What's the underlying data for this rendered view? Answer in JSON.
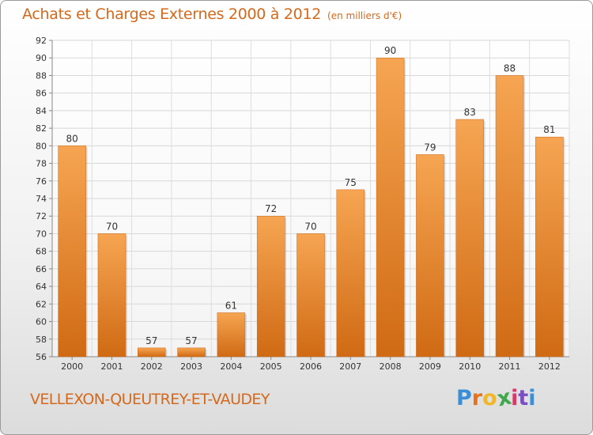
{
  "header": {
    "title": "Achats et Charges Externes 2000 à 2012",
    "subtitle": "(en milliers d'€)"
  },
  "footer": {
    "commune": "VELLEXON-QUEUTREY-ET-VAUDEY",
    "logo_letters": [
      "P",
      "r",
      "o",
      "x",
      "i",
      "t",
      "i"
    ],
    "logo_colors": [
      "#3b8fd6",
      "#e8731c",
      "#f0b72a",
      "#3ea84a",
      "#d43a6a",
      "#7a4fc0",
      "#3b8fd6"
    ]
  },
  "chart_data": {
    "type": "bar",
    "title": "Achats et Charges Externes 2000 à 2012",
    "categories": [
      "2000",
      "2001",
      "2002",
      "2003",
      "2004",
      "2005",
      "2006",
      "2007",
      "2008",
      "2009",
      "2010",
      "2011",
      "2012"
    ],
    "values": [
      80,
      70,
      57,
      57,
      61,
      72,
      70,
      75,
      90,
      79,
      83,
      88,
      81
    ],
    "data_labels": [
      "80",
      "70",
      "57",
      "57",
      "61",
      "72",
      "70",
      "75",
      "90",
      "79",
      "83",
      "88",
      "81"
    ],
    "ylim": [
      56,
      92
    ],
    "yticks": [
      56,
      58,
      60,
      62,
      64,
      66,
      68,
      70,
      72,
      74,
      76,
      78,
      80,
      82,
      84,
      86,
      88,
      90,
      92
    ],
    "ytick_labels": [
      "56",
      "58",
      "60",
      "62",
      "64",
      "66",
      "68",
      "70",
      "72",
      "74",
      "76",
      "78",
      "80",
      "82",
      "84",
      "86",
      "88",
      "90",
      "92"
    ],
    "grid": true,
    "bar_color": "#ee8a30"
  }
}
